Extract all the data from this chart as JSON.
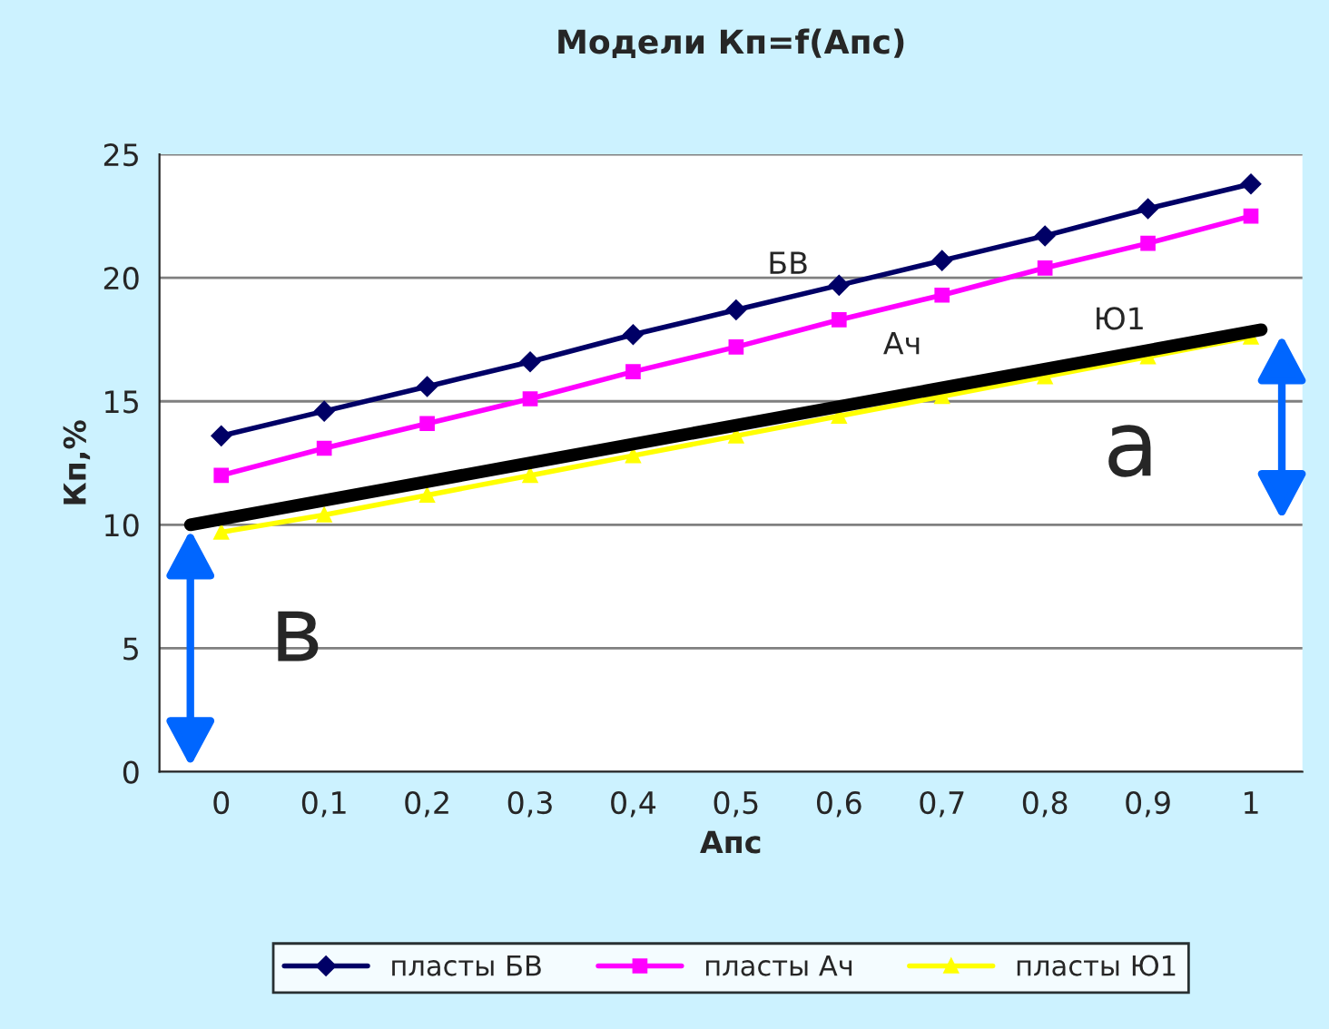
{
  "chart_data": {
    "type": "line",
    "title": "Модели Кп=f(Апс)",
    "xlabel": "Апс",
    "ylabel": "Кп,%",
    "x": [
      0,
      0.1,
      0.2,
      0.3,
      0.4,
      0.5,
      0.6,
      0.7,
      0.8,
      0.9,
      1
    ],
    "series": [
      {
        "name": "пласты БВ",
        "color": "#000066",
        "marker": "diamond",
        "values": [
          13.6,
          14.6,
          15.6,
          16.6,
          17.7,
          18.7,
          19.7,
          20.7,
          21.7,
          22.8,
          23.8
        ]
      },
      {
        "name": "пласты Ач",
        "color": "#ff00ff",
        "marker": "square",
        "values": [
          12.0,
          13.1,
          14.1,
          15.1,
          16.2,
          17.2,
          18.3,
          19.3,
          20.4,
          21.4,
          22.5
        ]
      },
      {
        "name": "пласты Ю1",
        "color": "#ffff00",
        "marker": "triangle",
        "values": [
          9.7,
          10.4,
          11.2,
          12.0,
          12.8,
          13.6,
          14.4,
          15.2,
          16.0,
          16.8,
          17.6
        ]
      },
      {
        "color": "#000000",
        "marker": "none",
        "x": [
          -0.03,
          1.01
        ],
        "values": [
          10.0,
          17.9
        ]
      }
    ],
    "xlim": [
      -0.06,
      1.05
    ],
    "xticks": [
      0,
      {
        "value": 0.1,
        "label": "0,1"
      },
      {
        "value": 0.2,
        "label": "0,2"
      },
      {
        "value": 0.3,
        "label": "0,3"
      },
      {
        "value": 0.4,
        "label": "0,4"
      },
      {
        "value": 0.5,
        "label": "0,5"
      },
      {
        "value": 0.6,
        "label": "0,6"
      },
      {
        "value": 0.7,
        "label": "0,7"
      },
      {
        "value": 0.8,
        "label": "0,8"
      },
      {
        "value": 0.9,
        "label": "0,9"
      },
      1
    ],
    "ylim": [
      0,
      25
    ],
    "yticks": [
      0,
      5,
      10,
      15,
      20,
      25
    ],
    "grid": "y",
    "legend": "bottom",
    "annotations": [
      "БВ",
      "Ач",
      "Ю1",
      "в",
      "а"
    ]
  }
}
